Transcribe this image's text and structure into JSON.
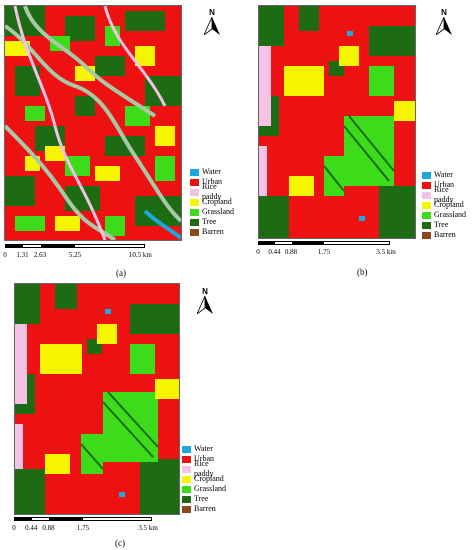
{
  "north_label": "N",
  "legend": [
    {
      "label": "Water",
      "color": "#1fa8e0"
    },
    {
      "label": "Urban",
      "color": "#ee1111"
    },
    {
      "label": "Rice paddy",
      "color": "#f4c2e6"
    },
    {
      "label": "Cropland",
      "color": "#f5f500"
    },
    {
      "label": "Grassland",
      "color": "#3ddc1a"
    },
    {
      "label": "Tree",
      "color": "#1d6b12"
    },
    {
      "label": "Barren",
      "color": "#8b4a1e"
    }
  ],
  "panels": {
    "a": {
      "caption": "(a)",
      "scale_ticks": [
        "0",
        "1.31",
        "2.63",
        "5.25",
        "10.5 km"
      ]
    },
    "b": {
      "caption": "(b)",
      "scale_ticks": [
        "0",
        "0.44",
        "0.88",
        "1.75",
        "3.5 km"
      ]
    },
    "c": {
      "caption": "(c)",
      "scale_ticks": [
        "0",
        "0.44",
        "0.88",
        "1.75",
        "3.5 km"
      ]
    }
  }
}
